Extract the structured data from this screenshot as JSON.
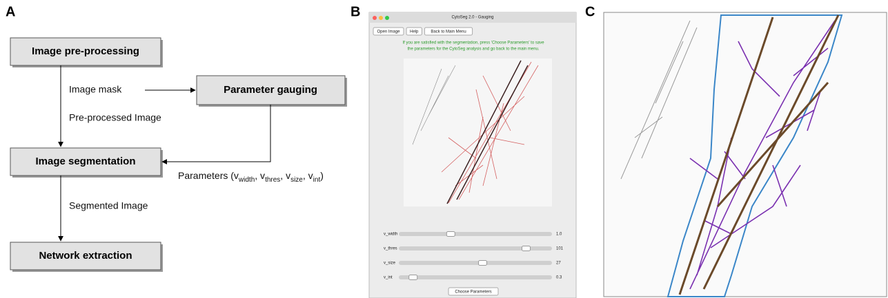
{
  "panels": {
    "a": "A",
    "b": "B",
    "c": "C"
  },
  "flowchart": {
    "nodes": [
      "Image pre-processing",
      "Parameter gauging",
      "Image segmentation",
      "Network extraction"
    ],
    "edges": {
      "mask": "Image mask",
      "preprocessed": "Pre-processed Image",
      "segmented": "Segmented Image",
      "parameters": [
        {
          "text": "Parameters (v"
        },
        {
          "text": "width",
          "sub": true
        },
        {
          "text": ", v"
        },
        {
          "text": "thres",
          "sub": true
        },
        {
          "text": ", v"
        },
        {
          "text": "size",
          "sub": true
        },
        {
          "text": ", v"
        },
        {
          "text": "int",
          "sub": true
        },
        {
          "text": ")"
        }
      ]
    }
  },
  "window": {
    "title": "CytoSeg 2.0 - Gauging",
    "buttons": [
      "Open Image",
      "Help",
      "Back to Main Menu"
    ],
    "message": [
      "If you are satisfied with the segmentation, press 'Choose Parameters' to save",
      "the parameters for the CytoSeg analysis and go back to the main menu."
    ],
    "sliders": [
      {
        "label": "v_width",
        "value": "1.0"
      },
      {
        "label": "v_thres",
        "value": "101"
      },
      {
        "label": "v_size",
        "value": "27"
      },
      {
        "label": "v_int",
        "value": "0.3"
      }
    ],
    "action": "Choose Parameters"
  }
}
